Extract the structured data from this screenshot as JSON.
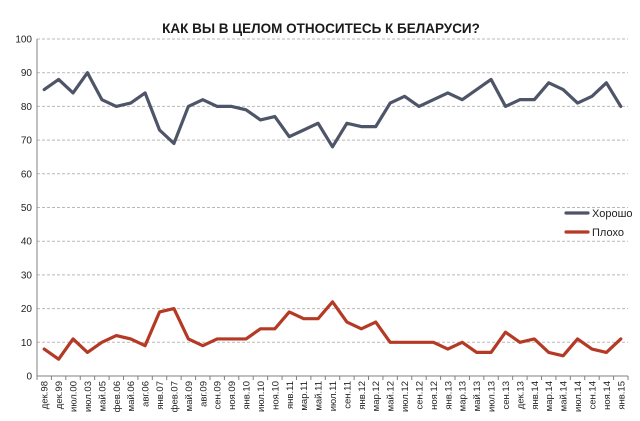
{
  "chart_data": {
    "type": "line",
    "title": "КАК ВЫ В ЦЕЛОМ ОТНОСИТЕСЬ К БЕЛАРУСИ?",
    "xlabel": "",
    "ylabel": "",
    "ylim": [
      0,
      100
    ],
    "yticks": [
      0,
      10,
      20,
      30,
      40,
      50,
      60,
      70,
      80,
      90,
      100
    ],
    "grid": true,
    "legend_position": "right",
    "categories": [
      "дек.98",
      "дек.99",
      "июл.00",
      "июл.03",
      "май.05",
      "фев.06",
      "май.06",
      "авг.06",
      "янв.07",
      "фев.07",
      "май.09",
      "авг.09",
      "сен.09",
      "ноя.09",
      "янв.10",
      "июл.10",
      "ноя.10",
      "янв.11",
      "мар.11",
      "май.11",
      "июл.11",
      "сен.11",
      "янв.12",
      "мар.12",
      "май.12",
      "июл.12",
      "сен.12",
      "ноя.12",
      "янв.13",
      "мар.13",
      "май.13",
      "июл.13",
      "сен.13",
      "дек.13",
      "янв.14",
      "мар.14",
      "май.14",
      "июл.14",
      "сен.14",
      "ноя.14",
      "янв.15"
    ],
    "series": [
      {
        "name": "Хорошо",
        "color": "#4f5568",
        "values": [
          85,
          88,
          84,
          90,
          82,
          80,
          81,
          84,
          73,
          69,
          80,
          82,
          80,
          80,
          79,
          76,
          77,
          71,
          73,
          75,
          68,
          75,
          74,
          74,
          81,
          83,
          80,
          82,
          84,
          82,
          85,
          88,
          80,
          82,
          82,
          87,
          85,
          81,
          83,
          87,
          80
        ]
      },
      {
        "name": "Плохо",
        "color": "#b53a25",
        "values": [
          8,
          5,
          11,
          7,
          10,
          12,
          11,
          9,
          19,
          20,
          11,
          9,
          11,
          11,
          11,
          14,
          14,
          19,
          17,
          17,
          22,
          16,
          14,
          16,
          10,
          10,
          10,
          10,
          8,
          10,
          7,
          7,
          13,
          10,
          11,
          7,
          6,
          11,
          8,
          7,
          11
        ]
      }
    ]
  }
}
